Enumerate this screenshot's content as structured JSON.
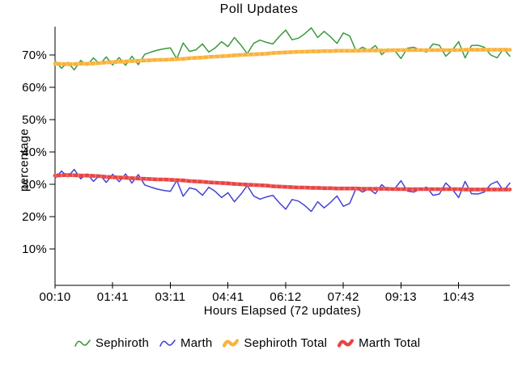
{
  "chart_data": {
    "type": "line",
    "title": "Poll Updates",
    "xlabel": "Hours Elapsed (72 updates)",
    "ylabel": "percentage",
    "background": "#ffffff",
    "axis_color": "#000000",
    "grid": false,
    "legend_position": "bottom",
    "x_range_updates": 72,
    "ylim": [
      0,
      78.75
    ],
    "x_ticks": {
      "labels": [
        "00:10",
        "01:41",
        "03:11",
        "04:41",
        "06:12",
        "07:42",
        "09:13",
        "10:43"
      ],
      "positions": [
        0,
        9,
        18,
        27,
        36,
        45,
        54,
        63
      ]
    },
    "y_ticks": {
      "values": [
        10,
        20,
        30,
        40,
        50,
        60,
        70
      ],
      "suffix": "%"
    },
    "series": [
      {
        "name": "Sephiroth",
        "color": "#3a9b3c",
        "stroke": "thin",
        "values": [
          68.2,
          65.9,
          67.7,
          65.4,
          68.3,
          66.8,
          69.1,
          67.1,
          69.4,
          66.9,
          69.2,
          66.8,
          69.6,
          67.0,
          70.2,
          70.9,
          71.5,
          71.9,
          72.2,
          68.8,
          73.7,
          71.1,
          71.6,
          73.4,
          70.9,
          72.2,
          74.1,
          72.6,
          75.4,
          73.1,
          70.4,
          73.6,
          74.6,
          73.9,
          73.4,
          75.7,
          77.7,
          74.7,
          75.2,
          76.6,
          78.4,
          75.4,
          77.3,
          75.6,
          73.6,
          76.8,
          75.9,
          71.2,
          72.4,
          71.4,
          72.9,
          70.1,
          71.9,
          71.4,
          68.9,
          72.1,
          72.4,
          71.5,
          70.9,
          73.4,
          73.0,
          69.6,
          71.5,
          74.1,
          69.1,
          72.9,
          73.0,
          72.4,
          70.0,
          69.1,
          72.0,
          69.6
        ]
      },
      {
        "name": "Marth",
        "color": "#4444d4",
        "stroke": "thin",
        "values": [
          31.8,
          34.1,
          32.3,
          34.6,
          31.7,
          33.2,
          30.9,
          32.9,
          30.6,
          33.1,
          30.8,
          33.2,
          30.4,
          33.0,
          29.8,
          29.1,
          28.5,
          28.1,
          27.8,
          31.2,
          26.3,
          28.9,
          28.4,
          26.6,
          29.1,
          27.8,
          25.9,
          27.4,
          24.6,
          26.9,
          29.6,
          26.4,
          25.4,
          26.1,
          26.6,
          24.3,
          22.3,
          25.3,
          24.8,
          23.4,
          21.6,
          24.6,
          22.7,
          24.4,
          26.4,
          23.2,
          24.1,
          28.8,
          27.6,
          28.6,
          27.1,
          29.9,
          28.1,
          28.6,
          31.1,
          27.9,
          27.6,
          28.5,
          29.1,
          26.6,
          27.0,
          30.4,
          28.5,
          25.9,
          30.9,
          27.1,
          27.0,
          27.6,
          30.0,
          30.9,
          28.0,
          30.4
        ]
      },
      {
        "name": "Sephiroth Total",
        "color": "#f9b23a",
        "stroke": "thick",
        "values": [
          67.3,
          67.2,
          67.1,
          67.2,
          67.3,
          67.3,
          67.4,
          67.5,
          67.7,
          67.8,
          67.9,
          68.0,
          68.1,
          68.2,
          68.3,
          68.4,
          68.5,
          68.5,
          68.6,
          68.7,
          68.8,
          69.0,
          69.1,
          69.2,
          69.4,
          69.5,
          69.6,
          69.7,
          69.9,
          70.0,
          70.1,
          70.2,
          70.3,
          70.4,
          70.6,
          70.7,
          70.8,
          70.9,
          71.0,
          71.0,
          71.1,
          71.1,
          71.2,
          71.2,
          71.3,
          71.3,
          71.3,
          71.3,
          71.4,
          71.4,
          71.4,
          71.4,
          71.4,
          71.5,
          71.5,
          71.5,
          71.5,
          71.5,
          71.5,
          71.5,
          71.5,
          71.5,
          71.5,
          71.5,
          71.6,
          71.6,
          71.6,
          71.6,
          71.6,
          71.6,
          71.6,
          71.6
        ]
      },
      {
        "name": "Marth Total",
        "color": "#e84444",
        "stroke": "thick",
        "values": [
          32.7,
          32.8,
          32.9,
          32.8,
          32.7,
          32.7,
          32.6,
          32.5,
          32.3,
          32.2,
          32.1,
          32.0,
          31.9,
          31.8,
          31.7,
          31.6,
          31.5,
          31.5,
          31.4,
          31.3,
          31.2,
          31.0,
          30.9,
          30.8,
          30.6,
          30.5,
          30.4,
          30.3,
          30.1,
          30.0,
          29.9,
          29.8,
          29.7,
          29.6,
          29.4,
          29.3,
          29.2,
          29.1,
          29.0,
          29.0,
          28.9,
          28.9,
          28.8,
          28.8,
          28.7,
          28.7,
          28.7,
          28.7,
          28.6,
          28.6,
          28.6,
          28.6,
          28.6,
          28.5,
          28.5,
          28.5,
          28.5,
          28.5,
          28.5,
          28.5,
          28.5,
          28.5,
          28.5,
          28.5,
          28.4,
          28.4,
          28.4,
          28.4,
          28.4,
          28.4,
          28.4,
          28.4
        ]
      }
    ]
  }
}
